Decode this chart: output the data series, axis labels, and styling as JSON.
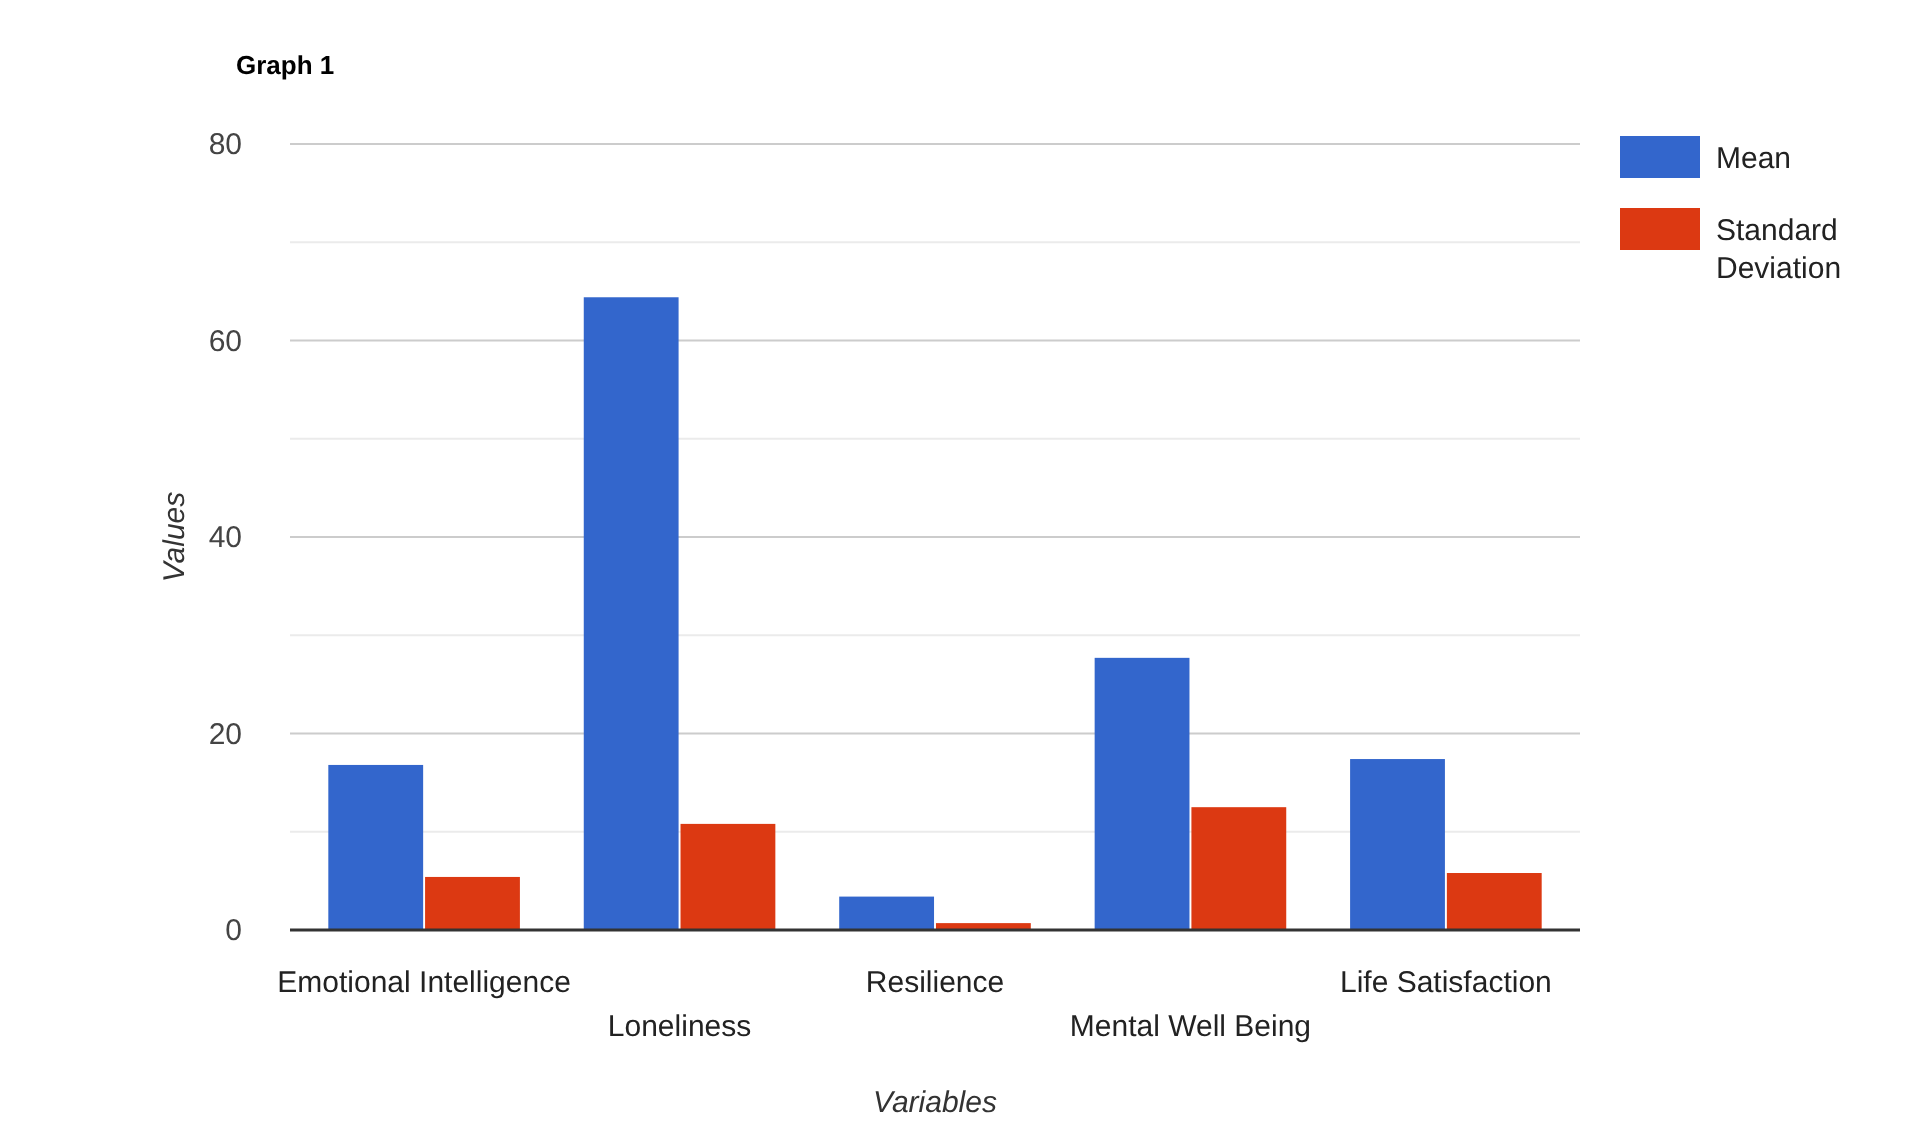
{
  "chart_data": {
    "type": "bar",
    "title": "Graph 1",
    "xlabel": "Variables",
    "ylabel": "Values",
    "categories": [
      "Emotional Intelligence",
      "Loneliness",
      "Resilience",
      "Mental Well Being",
      "Life Satisfaction"
    ],
    "series": [
      {
        "name": "Mean",
        "color": "#3366cc",
        "values": [
          16.8,
          64.4,
          3.4,
          27.7,
          17.4
        ]
      },
      {
        "name": "Standard Deviation",
        "color": "#dc3912",
        "values": [
          5.4,
          10.8,
          0.7,
          12.5,
          5.8
        ]
      }
    ],
    "ylim": [
      0,
      80
    ],
    "yticks": [
      0,
      {
        "value": 10,
        "label": null
      },
      20,
      {
        "value": 30,
        "label": null
      },
      40,
      {
        "value": 50,
        "label": null
      },
      60,
      {
        "value": 70,
        "label": null
      },
      80
    ],
    "grid": true,
    "legend": "top right"
  }
}
